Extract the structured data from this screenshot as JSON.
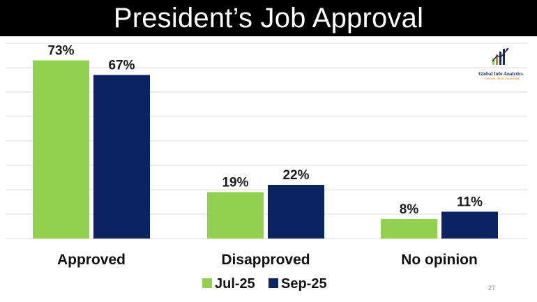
{
  "slide": {
    "title": "President’s Job Approval",
    "page_number": "27"
  },
  "logo": {
    "name": "Global Info Analytics",
    "tagline": "~ Analysis | Polls | Marketing",
    "icon": "bar-chart-logo-icon"
  },
  "colors": {
    "jul": "#92d050",
    "sep": "#0c2461",
    "gridline": "#d9d9d9",
    "title_bar": "#000000"
  },
  "chart_data": {
    "type": "bar",
    "title": "President’s Job Approval",
    "categories": [
      "Approved",
      "Disapproved",
      "No opinion"
    ],
    "series": [
      {
        "name": "Jul-25",
        "values": [
          73,
          19,
          8
        ],
        "labels": [
          "73%",
          "19%",
          "8%"
        ]
      },
      {
        "name": "Sep-25",
        "values": [
          67,
          22,
          11
        ],
        "labels": [
          "67%",
          "22%",
          "11%"
        ]
      }
    ],
    "ylim": [
      0,
      80
    ],
    "y_gridline_step": 10,
    "grid": true,
    "y_ticks_shown": false,
    "legend_position": "bottom"
  }
}
